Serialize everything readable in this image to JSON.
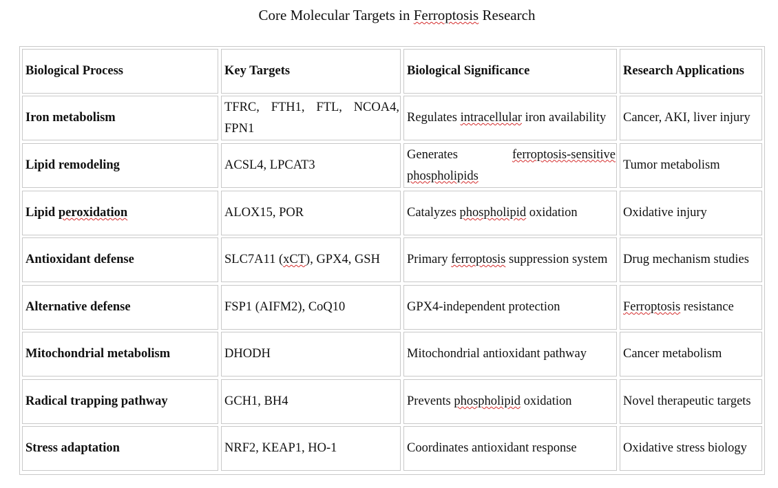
{
  "title": {
    "before": "Core Molecular Targets in ",
    "marked": "Ferroptosis",
    "after": " Research"
  },
  "headers": [
    "Biological Process",
    "Key Targets",
    "Biological Significance",
    "Research Applications"
  ],
  "rows": [
    {
      "process": "Iron metabolism",
      "targets": "TFRC, FTH1, FTL, NCOA4, FPN1",
      "significance": [
        "Regulates ",
        {
          "m": "intracellular"
        },
        " iron availability"
      ],
      "applications": "Cancer, AKI, liver injury"
    },
    {
      "process": "Lipid remodeling",
      "targets": "ACSL4, LPCAT3",
      "significance": [
        "Generates ",
        {
          "m": "ferroptosis-sensitive"
        },
        " ",
        {
          "m": "phospholipids"
        }
      ],
      "applications": "Tumor metabolism"
    },
    {
      "process": [
        "Lipid ",
        {
          "m": "peroxidation"
        }
      ],
      "targets": "ALOX15, POR",
      "significance": [
        "Catalyzes ",
        {
          "m": "phospholipid"
        },
        " oxidation"
      ],
      "applications": "Oxidative injury"
    },
    {
      "process": "Antioxidant defense",
      "targets": [
        "SLC7A11 (",
        {
          "m": "xCT"
        },
        "), GPX4, GSH"
      ],
      "significance": [
        "Primary ",
        {
          "m": "ferroptosis"
        },
        " suppression system"
      ],
      "applications": "Drug mechanism studies"
    },
    {
      "process": "Alternative defense",
      "targets": "FSP1 (AIFM2), CoQ10",
      "significance": "GPX4-independent protection",
      "applications": [
        {
          "m": "Ferroptosis"
        },
        " resistance"
      ]
    },
    {
      "process": "Mitochondrial metabolism",
      "targets": "DHODH",
      "significance": "Mitochondrial antioxidant pathway",
      "applications": "Cancer metabolism"
    },
    {
      "process": "Radical trapping pathway",
      "targets": "GCH1, BH4",
      "significance": [
        "Prevents ",
        {
          "m": "phospholipid"
        },
        " oxidation"
      ],
      "applications": "Novel therapeutic targets"
    },
    {
      "process": "Stress adaptation",
      "targets": "NRF2, KEAP1, HO-1",
      "significance": "Coordinates antioxidant response",
      "applications": "Oxidative stress biology"
    }
  ]
}
